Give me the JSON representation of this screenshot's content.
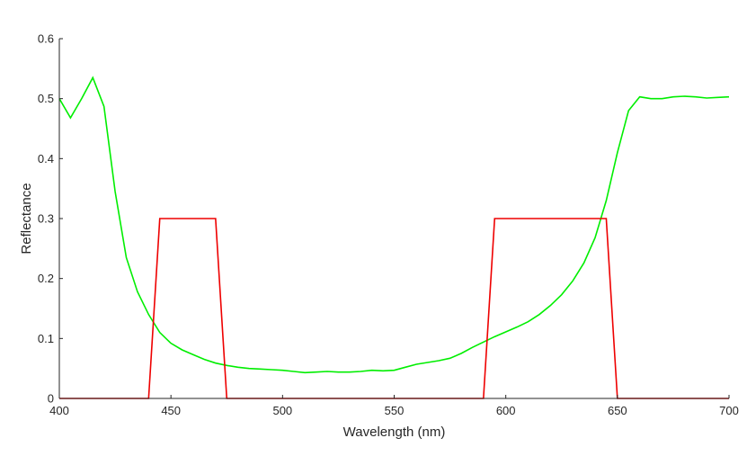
{
  "chart_data": {
    "type": "line",
    "title": "",
    "xlabel": "Wavelength (nm)",
    "ylabel": "Reflectance",
    "xlim": [
      400,
      700
    ],
    "ylim": [
      0,
      0.6
    ],
    "xticks": [
      400,
      450,
      500,
      550,
      600,
      650,
      700
    ],
    "xtick_labels": [
      "400",
      "450",
      "500",
      "550",
      "600",
      "650",
      "700"
    ],
    "yticks": [
      0,
      0.1,
      0.2,
      0.3,
      0.4,
      0.5,
      0.6
    ],
    "ytick_labels": [
      "0",
      "0.1",
      "0.2",
      "0.3",
      "0.4",
      "0.5",
      "0.6"
    ],
    "grid": false,
    "legend": "none",
    "series": [
      {
        "color": "#00ee00",
        "x": [
          400,
          405,
          410,
          415,
          420,
          425,
          430,
          435,
          440,
          445,
          450,
          455,
          460,
          465,
          470,
          475,
          480,
          485,
          490,
          495,
          500,
          505,
          510,
          515,
          520,
          525,
          530,
          535,
          540,
          545,
          550,
          555,
          560,
          565,
          570,
          575,
          580,
          585,
          590,
          595,
          600,
          605,
          610,
          615,
          620,
          625,
          630,
          635,
          640,
          645,
          650,
          655,
          660,
          665,
          670,
          675,
          680,
          685,
          690,
          695,
          700
        ],
        "y": [
          0.5,
          0.468,
          0.5,
          0.535,
          0.487,
          0.345,
          0.235,
          0.178,
          0.14,
          0.11,
          0.092,
          0.081,
          0.073,
          0.065,
          0.059,
          0.055,
          0.052,
          0.05,
          0.049,
          0.048,
          0.047,
          0.045,
          0.043,
          0.044,
          0.045,
          0.044,
          0.044,
          0.045,
          0.047,
          0.046,
          0.047,
          0.052,
          0.057,
          0.06,
          0.063,
          0.067,
          0.075,
          0.085,
          0.094,
          0.103,
          0.111,
          0.119,
          0.128,
          0.14,
          0.155,
          0.173,
          0.196,
          0.226,
          0.268,
          0.33,
          0.41,
          0.48,
          0.503,
          0.5,
          0.5,
          0.503,
          0.504,
          0.503,
          0.501,
          0.502,
          0.503
        ]
      },
      {
        "color": "#ee0000",
        "x": [
          400,
          440,
          445,
          470,
          475,
          590,
          595,
          645,
          650,
          700
        ],
        "y": [
          0,
          0,
          0.3,
          0.3,
          0,
          0,
          0.3,
          0.3,
          0,
          0
        ]
      }
    ]
  }
}
